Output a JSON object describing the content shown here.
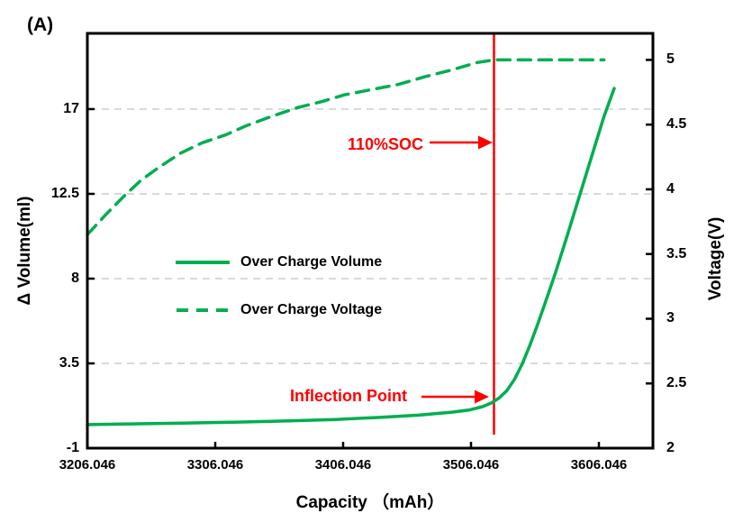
{
  "figure_label": "(A)",
  "colors": {
    "series_green": "#00AE50",
    "annotation_red": "#FE0000",
    "grid_gray": "#D9D9D9",
    "axis_black": "#000000",
    "background": "#FFFFFF"
  },
  "legend": {
    "items": [
      {
        "label": "Over Charge Volume",
        "style": "solid"
      },
      {
        "label": "Over Charge Voltage",
        "style": "dashed"
      }
    ]
  },
  "annotations": {
    "soc_label": "110%SOC",
    "inflection_label": "Inflection Point",
    "soc_line_capacity_mAh": 3524
  },
  "chart_data": {
    "type": "line",
    "title": "",
    "x_axis": {
      "title": "Capacity （mAh）",
      "tick_labels": [
        "3206.046",
        "3306.046",
        "3406.046",
        "3506.046",
        "3606.046"
      ],
      "tick_values": [
        3206.046,
        3306.046,
        3406.046,
        3506.046,
        3606.046
      ],
      "min": 3206.046,
      "max": 3648.3,
      "grid": false
    },
    "y_left_axis": {
      "title": "Δ Volume(ml)",
      "tick_labels": [
        "-1",
        "3.5",
        "8",
        "12.5",
        "17"
      ],
      "tick_values": [
        -1,
        3.5,
        8,
        12.5,
        17
      ],
      "min": -1,
      "max": 21.02,
      "grid_values": [
        3.5,
        8,
        12.5,
        17
      ]
    },
    "y_right_axis": {
      "title": "Voltage(V)",
      "tick_labels": [
        "2",
        "2.5",
        "3",
        "3.5",
        "4",
        "4.5",
        "5"
      ],
      "tick_values": [
        2,
        2.5,
        3,
        3.5,
        4,
        4.5,
        5
      ],
      "min": 2,
      "max": 5.205
    },
    "legend_position": "inside-left-middle",
    "series": [
      {
        "name": "Over Charge Volume",
        "axis": "left",
        "style": "solid",
        "x": [
          3206.046,
          3240,
          3280,
          3320,
          3360,
          3400,
          3435,
          3465,
          3490,
          3505,
          3515,
          3522,
          3528,
          3534,
          3540,
          3546,
          3552,
          3558,
          3565,
          3572,
          3580,
          3590,
          3600,
          3610,
          3618
        ],
        "y": [
          0.25,
          0.29,
          0.33,
          0.38,
          0.44,
          0.52,
          0.63,
          0.75,
          0.9,
          1.03,
          1.2,
          1.4,
          1.66,
          2.05,
          2.65,
          3.45,
          4.45,
          5.55,
          6.9,
          8.3,
          10.0,
          12.2,
          14.4,
          16.6,
          18.1
        ]
      },
      {
        "name": "Over Charge Voltage",
        "axis": "right",
        "style": "dashed",
        "x": [
          3206.046,
          3220,
          3235,
          3248,
          3262,
          3279,
          3296,
          3314,
          3330,
          3349,
          3370,
          3390,
          3407,
          3428,
          3449,
          3470,
          3490,
          3511,
          3524,
          3545,
          3570,
          3595,
          3610
        ],
        "y": [
          3.65,
          3.8,
          3.95,
          4.07,
          4.17,
          4.28,
          4.36,
          4.42,
          4.49,
          4.56,
          4.63,
          4.68,
          4.73,
          4.77,
          4.81,
          4.87,
          4.92,
          4.98,
          5.0,
          5.0,
          5.0,
          5.0,
          5.0
        ]
      }
    ]
  }
}
